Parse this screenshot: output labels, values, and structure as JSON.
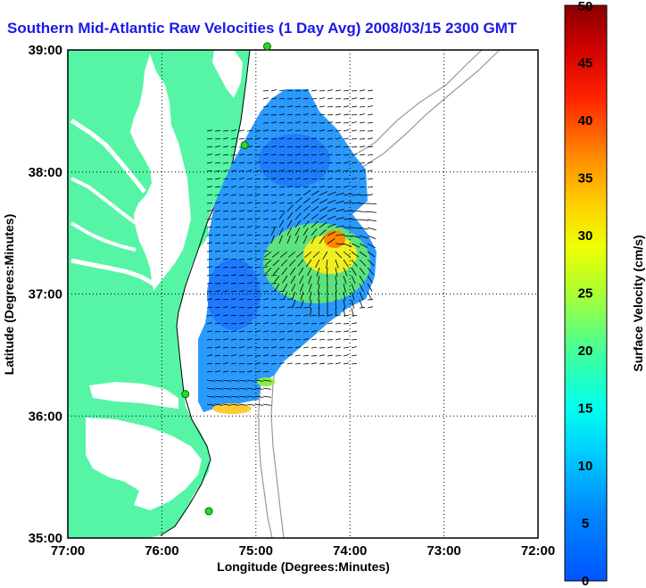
{
  "title": "Southern Mid-Atlantic Raw Velocities (1 Day Avg) 2008/03/15 2300 GMT",
  "map": {
    "x_ticks": [
      "77:00",
      "76:00",
      "75:00",
      "74:00",
      "73:00",
      "72:00"
    ],
    "y_ticks": [
      "39:00",
      "38:00",
      "37:00",
      "36:00",
      "35:00"
    ],
    "xlabel": "Longitude (Degrees:Minutes)",
    "ylabel": "Latitude (Degrees:Minutes)",
    "lon_range": [
      -77,
      -72
    ],
    "lat_range": [
      35,
      39
    ],
    "land_color": "#55f5a5",
    "grid": "dotted"
  },
  "colorbar": {
    "label": "Surface Velocity (cm/s)",
    "ticks": [
      "0",
      "5",
      "10",
      "15",
      "20",
      "25",
      "30",
      "35",
      "40",
      "45",
      "50"
    ],
    "range": [
      0,
      50
    ],
    "colormap": "jet"
  },
  "stations": [
    {
      "lon": -74.88,
      "lat": 39.03
    },
    {
      "lon": -75.12,
      "lat": 38.22
    },
    {
      "lon": -75.75,
      "lat": 36.18
    },
    {
      "lon": -75.5,
      "lat": 35.22
    }
  ]
}
